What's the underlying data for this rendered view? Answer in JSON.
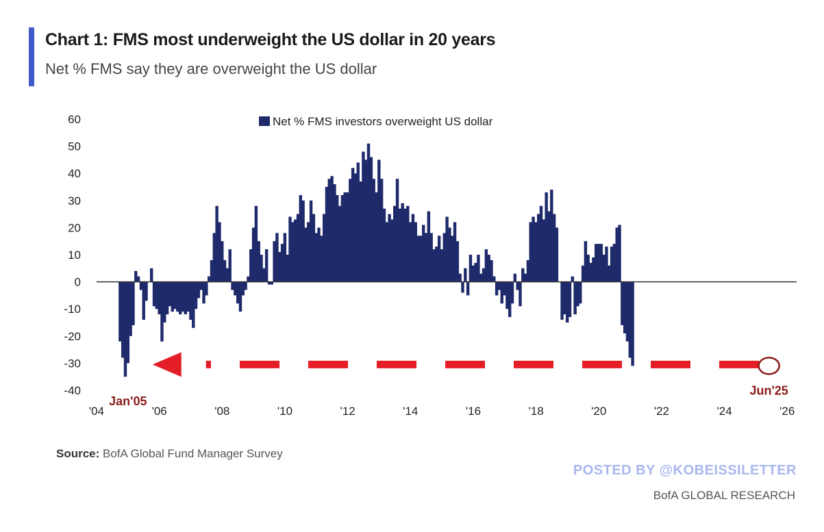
{
  "header": {
    "title": "Chart 1: FMS most underweight the US dollar in 20 years",
    "subtitle": "Net % FMS say they are overweight the US dollar",
    "accent_color": "#3f5bc9"
  },
  "footer": {
    "source_label": "Source:",
    "source_text": " BofA Global Fund Manager Survey",
    "posted_by": "POSTED BY @KOBEISSILETTER",
    "brand": "BofA GLOBAL RESEARCH"
  },
  "chart_data": {
    "type": "bar",
    "legend_position": "top-center",
    "grid": false,
    "bar_color": "#1f2a6b",
    "ylim": [
      -40,
      60
    ],
    "y_ticks": [
      60,
      50,
      40,
      30,
      20,
      10,
      0,
      -10,
      -20,
      -30,
      -40
    ],
    "xlim": [
      2004,
      2026.3
    ],
    "x_ticks": [
      {
        "value": 2004,
        "label": "'04"
      },
      {
        "value": 2006,
        "label": "'06"
      },
      {
        "value": 2008,
        "label": "'08"
      },
      {
        "value": 2010,
        "label": "'10"
      },
      {
        "value": 2012,
        "label": "'12"
      },
      {
        "value": 2014,
        "label": "'14"
      },
      {
        "value": 2016,
        "label": "'16"
      },
      {
        "value": 2018,
        "label": "'18"
      },
      {
        "value": 2020,
        "label": "'20"
      },
      {
        "value": 2022,
        "label": "'22"
      },
      {
        "value": 2024,
        "label": "'24"
      },
      {
        "value": 2026,
        "label": "'26"
      }
    ],
    "series": [
      {
        "name": "Net % FMS investors overweight US dollar",
        "start": 2004.75,
        "step": 0.0833,
        "values": [
          -22,
          -28,
          -35,
          -30,
          -20,
          -16,
          4,
          2,
          -3,
          -14,
          -7,
          0,
          5,
          -9,
          -10,
          -12,
          -22,
          -15,
          -12,
          -9,
          -11,
          -10,
          -11,
          -12,
          -11,
          -12,
          -11,
          -14,
          -17,
          -10,
          -6,
          -3,
          -8,
          -5,
          2,
          8,
          18,
          28,
          22,
          15,
          8,
          5,
          12,
          -3,
          -5,
          -8,
          -11,
          -5,
          -3,
          2,
          12,
          20,
          28,
          15,
          10,
          5,
          12,
          -1,
          -1,
          15,
          18,
          11,
          14,
          18,
          10,
          24,
          22,
          23,
          25,
          32,
          30,
          20,
          22,
          30,
          25,
          18,
          20,
          17,
          25,
          35,
          38,
          39,
          36,
          32,
          28,
          32,
          33,
          33,
          38,
          42,
          40,
          44,
          37,
          48,
          45,
          51,
          46,
          38,
          33,
          45,
          38,
          27,
          22,
          25,
          23,
          28,
          38,
          27,
          29,
          27,
          28,
          22,
          25,
          22,
          17,
          17,
          21,
          18,
          26,
          18,
          12,
          13,
          17,
          12,
          18,
          24,
          20,
          17,
          22,
          15,
          3,
          -4,
          5,
          -5,
          10,
          6,
          7,
          10,
          3,
          5,
          12,
          10,
          8,
          2,
          -5,
          -3,
          -8,
          -5,
          -10,
          -13,
          -8,
          3,
          -3,
          -9,
          5,
          3,
          8,
          22,
          24,
          22,
          25,
          28,
          23,
          33,
          26,
          34,
          25,
          20,
          0,
          -14,
          -12,
          -15,
          -13,
          2,
          -12,
          -9,
          -8,
          6,
          15,
          10,
          7,
          9,
          14,
          14,
          14,
          10,
          13,
          6,
          13,
          14,
          20,
          21,
          -16,
          -19,
          -22,
          -28,
          -31
        ],
        "data_labels": [
          {
            "text": "Jan'05",
            "x": 2005.0,
            "y": -35,
            "color": "#8b1a1a"
          },
          {
            "text": "Jun'25",
            "x": 2025.42,
            "y": -31,
            "color": "#8b1a1a"
          }
        ]
      }
    ],
    "annotation": {
      "type": "dashed-arrow",
      "color": "#e41e26",
      "y": -30.5,
      "x_from": 2025.1,
      "x_to": 2006.7,
      "circle_x": 2025.42,
      "circle_y": -31,
      "circle_color": "#8b1a1a"
    }
  }
}
